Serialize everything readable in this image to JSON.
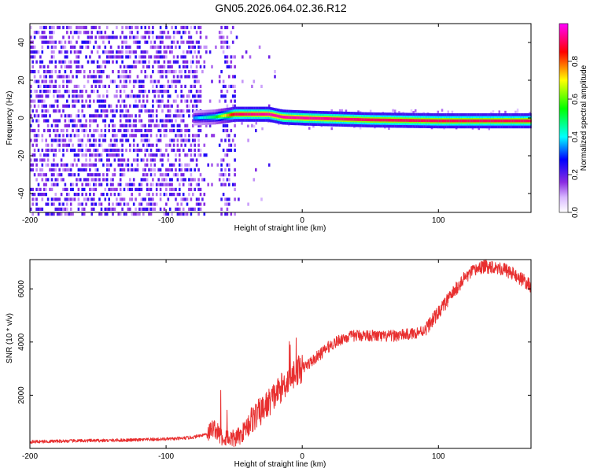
{
  "title": "GN05.2026.064.02.36.R12",
  "chart_data": [
    {
      "type": "heatmap",
      "title": "GN05.2026.064.02.36.R12",
      "xlabel": "Height of straight line (km)",
      "ylabel": "Frequency (Hz)",
      "xlim": [
        -200,
        168
      ],
      "ylim": [
        -50,
        50
      ],
      "xticks": [
        -200,
        -100,
        0,
        100
      ],
      "yticks": [
        40,
        20,
        0,
        -20,
        -40
      ],
      "grid": false,
      "colorbar": {
        "label": "Normalized spectral amplitude",
        "range": [
          0.0,
          1.0
        ],
        "ticks": [
          "0.0",
          "0.2",
          "0.4",
          "0.6",
          "0.8"
        ],
        "colors": [
          "#ffffff",
          "#8a2be2",
          "#0000ff",
          "#00ffff",
          "#00ff00",
          "#ffff00",
          "#ff0000",
          "#ff00ff"
        ]
      },
      "features": {
        "noise_region_x": [
          -200,
          -50
        ],
        "main_ridge": [
          {
            "x": -80,
            "freq": 0.0,
            "amp": 0.35
          },
          {
            "x": -65,
            "freq": 0.5,
            "amp": 0.5
          },
          {
            "x": -50,
            "freq": 2.0,
            "amp": 0.9
          },
          {
            "x": -25,
            "freq": 2.0,
            "amp": 0.95
          },
          {
            "x": -15,
            "freq": 0.5,
            "amp": 0.95
          },
          {
            "x": 0,
            "freq": 0.0,
            "amp": 0.95
          },
          {
            "x": 50,
            "freq": -1.0,
            "amp": 0.9
          },
          {
            "x": 100,
            "freq": -1.5,
            "amp": 0.9
          },
          {
            "x": 168,
            "freq": -1.5,
            "amp": 0.9
          }
        ]
      }
    },
    {
      "type": "line",
      "xlabel": "Height of straight line (km)",
      "ylabel": "SNR (10 * v/v)",
      "xlim": [
        -200,
        168
      ],
      "ylim": [
        0,
        7100
      ],
      "xticks": [
        -200,
        -100,
        0,
        100
      ],
      "yticks": [
        2000,
        4000,
        6000
      ],
      "grid": false,
      "color": "#e83030",
      "x": [
        -200,
        -180,
        -160,
        -140,
        -120,
        -100,
        -90,
        -80,
        -70,
        -65,
        -60,
        -55,
        -50,
        -45,
        -40,
        -35,
        -30,
        -25,
        -20,
        -15,
        -10,
        -5,
        0,
        10,
        20,
        30,
        40,
        50,
        60,
        70,
        80,
        90,
        100,
        110,
        120,
        130,
        140,
        150,
        160,
        168
      ],
      "values": [
        250,
        270,
        290,
        300,
        320,
        350,
        370,
        420,
        550,
        800,
        450,
        400,
        350,
        500,
        900,
        1200,
        1400,
        1700,
        2000,
        2300,
        2600,
        2900,
        3000,
        3400,
        3850,
        4150,
        4250,
        4250,
        4200,
        4250,
        4300,
        4450,
        5100,
        5800,
        6450,
        6800,
        6850,
        6700,
        6400,
        6100
      ]
    }
  ]
}
